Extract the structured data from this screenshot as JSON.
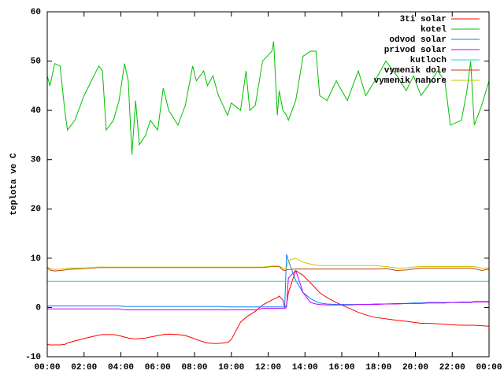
{
  "chart_data": {
    "type": "line",
    "ylabel": "teplota ve C",
    "legend": "top-right",
    "x": [
      0,
      0.15,
      0.4,
      0.7,
      0.95,
      1.1,
      1.5,
      2,
      2.8,
      3,
      3.2,
      3.6,
      3.9,
      4.2,
      4.4,
      4.6,
      4.8,
      5,
      5.35,
      5.6,
      6,
      6.3,
      6.6,
      7.1,
      7.5,
      7.9,
      8.1,
      8.5,
      8.7,
      9,
      9.3,
      9.8,
      10,
      10.5,
      10.8,
      11,
      11.3,
      11.7,
      12.2,
      12.3,
      12.5,
      12.6,
      12.8,
      12.9,
      13,
      13.1,
      13.5,
      13.9,
      14.3,
      14.6,
      14.8,
      15.2,
      15.7,
      16.3,
      16.5,
      16.9,
      17.3,
      17.8,
      18.4,
      19,
      19.5,
      19.9,
      20.3,
      20.7,
      21.2,
      21.6,
      21.9,
      22.5,
      22.8,
      23,
      23.2,
      23.6,
      24
    ],
    "xlim": [
      0,
      24
    ],
    "xticks": [
      {
        "value": 0,
        "label": "00:00"
      },
      {
        "value": 2,
        "label": "02:00"
      },
      {
        "value": 4,
        "label": "04:00"
      },
      {
        "value": 6,
        "label": "06:00"
      },
      {
        "value": 8,
        "label": "08:00"
      },
      {
        "value": 10,
        "label": "10:00"
      },
      {
        "value": 12,
        "label": "12:00"
      },
      {
        "value": 14,
        "label": "14:00"
      },
      {
        "value": 16,
        "label": "16:00"
      },
      {
        "value": 18,
        "label": "18:00"
      },
      {
        "value": 20,
        "label": "20:00"
      },
      {
        "value": 22,
        "label": "22:00"
      },
      {
        "value": 24,
        "label": "00:00"
      }
    ],
    "ylim": [
      -10,
      60
    ],
    "yticks": [
      -10,
      0,
      10,
      20,
      30,
      40,
      50,
      60
    ],
    "series": [
      {
        "name": "3ti solar",
        "color": "#ff0000",
        "values": [
          -7.5,
          -7.6,
          -7.6,
          -7.6,
          -7.5,
          -7.2,
          -6.8,
          -6.3,
          -5.6,
          -5.5,
          -5.5,
          -5.5,
          -5.7,
          -6,
          -6.2,
          -6.3,
          -6.4,
          -6.3,
          -6.2,
          -6,
          -5.7,
          -5.5,
          -5.4,
          -5.5,
          -5.7,
          -6.2,
          -6.5,
          -7,
          -7.2,
          -7.3,
          -7.3,
          -7.1,
          -6.5,
          -3,
          -2,
          -1.5,
          -0.8,
          0.5,
          1.5,
          1.7,
          2,
          2.3,
          1.5,
          0,
          0.5,
          3,
          7.5,
          6.5,
          5,
          3.8,
          3,
          2,
          1,
          0,
          -0.3,
          -1,
          -1.5,
          -2,
          -2.3,
          -2.6,
          -2.8,
          -3,
          -3.2,
          -3.2,
          -3.3,
          -3.4,
          -3.5,
          -3.6,
          -3.6,
          -3.6,
          -3.6,
          -3.7,
          -3.8
        ]
      },
      {
        "name": "kotel",
        "color": "#00c000",
        "values": [
          47,
          45,
          49.5,
          49,
          40,
          36,
          38,
          43,
          49,
          48,
          36,
          38,
          42,
          49.5,
          46,
          31,
          42,
          33,
          35,
          38,
          36,
          44.5,
          40,
          37,
          41,
          49,
          46,
          48,
          45,
          47,
          43,
          39,
          41.5,
          40,
          48,
          40,
          41,
          50,
          52,
          54,
          39,
          44,
          40,
          39.5,
          39,
          38,
          42,
          51,
          52,
          52,
          43,
          42,
          46,
          42,
          44,
          48,
          43,
          46,
          50,
          47,
          44,
          47,
          43,
          45,
          48,
          46,
          37,
          38,
          44,
          50,
          37,
          41,
          46
        ]
      },
      {
        "name": "odvod solar",
        "color": "#0080ff",
        "values": [
          0.3,
          0.3,
          0.3,
          0.3,
          0.3,
          0.3,
          0.3,
          0.3,
          0.3,
          0.3,
          0.3,
          0.3,
          0.3,
          0.2,
          0.2,
          0.2,
          0.2,
          0.2,
          0.2,
          0.2,
          0.2,
          0.2,
          0.2,
          0.2,
          0.2,
          0.2,
          0.2,
          0.2,
          0.2,
          0.2,
          0.2,
          0.1,
          0.1,
          0.1,
          0.1,
          0.1,
          0.1,
          0.1,
          0.1,
          0.1,
          0.1,
          0.1,
          0.1,
          0.1,
          10.8,
          9.5,
          5.5,
          3,
          1.8,
          1.2,
          0.9,
          0.7,
          0.6,
          0.6,
          0.6,
          0.6,
          0.6,
          0.7,
          0.7,
          0.8,
          0.8,
          0.9,
          0.9,
          1,
          1,
          1,
          1,
          1.1,
          1.1,
          1.1,
          1.2,
          1.2,
          1.2
        ]
      },
      {
        "name": "privod solar",
        "color": "#c000ff",
        "values": [
          -0.3,
          -0.3,
          -0.3,
          -0.3,
          -0.3,
          -0.3,
          -0.3,
          -0.3,
          -0.3,
          -0.3,
          -0.3,
          -0.3,
          -0.3,
          -0.5,
          -0.5,
          -0.5,
          -0.5,
          -0.5,
          -0.5,
          -0.5,
          -0.5,
          -0.5,
          -0.5,
          -0.5,
          -0.5,
          -0.5,
          -0.5,
          -0.5,
          -0.5,
          -0.5,
          -0.5,
          -0.5,
          -0.5,
          -0.5,
          -0.5,
          -0.5,
          -0.5,
          -0.2,
          -0.2,
          -0.2,
          -0.2,
          -0.2,
          -0.2,
          -0.2,
          0,
          6,
          7.5,
          3,
          1,
          0.7,
          0.6,
          0.5,
          0.5,
          0.5,
          0.5,
          0.6,
          0.6,
          0.6,
          0.7,
          0.7,
          0.8,
          0.8,
          0.8,
          0.9,
          0.9,
          0.9,
          1,
          1,
          1,
          1,
          1.1,
          1.1,
          1.1
        ]
      },
      {
        "name": "kutloch",
        "color": "#00e0e0",
        "values": [
          5.3,
          5.3,
          5.3,
          5.3,
          5.3,
          5.3,
          5.3,
          5.3,
          5.3,
          5.3,
          5.3,
          5.3,
          5.3,
          5.3,
          5.3,
          5.3,
          5.3,
          5.3,
          5.3,
          5.3,
          5.3,
          5.3,
          5.3,
          5.3,
          5.3,
          5.3,
          5.3,
          5.3,
          5.3,
          5.3,
          5.3,
          5.3,
          5.3,
          5.3,
          5.3,
          5.3,
          5.3,
          5.3,
          5.3,
          5.3,
          5.3,
          5.3,
          5.3,
          5.3,
          5.3,
          5.3,
          5.3,
          5.3,
          5.3,
          5.3,
          5.3,
          5.3,
          5.3,
          5.3,
          5.3,
          5.3,
          5.3,
          5.3,
          5.3,
          5.3,
          5.3,
          5.3,
          5.3,
          5.3,
          5.3,
          5.3,
          5.3,
          5.3,
          5.3,
          5.3,
          5.3,
          5.3,
          5.3
        ]
      },
      {
        "name": "vymenik dole",
        "color": "#c04000",
        "values": [
          8,
          7.6,
          7.4,
          7.5,
          7.6,
          7.7,
          7.8,
          7.9,
          8.1,
          8.1,
          8.1,
          8.1,
          8.1,
          8.1,
          8.1,
          8.1,
          8.1,
          8.1,
          8.1,
          8.1,
          8.1,
          8.1,
          8.1,
          8.1,
          8.1,
          8.1,
          8.1,
          8.1,
          8.1,
          8.1,
          8.1,
          8.1,
          8.1,
          8.1,
          8.1,
          8.1,
          8.1,
          8.1,
          8.3,
          8.3,
          8.3,
          8.3,
          7.6,
          7.5,
          7.6,
          7.7,
          7.8,
          7.8,
          7.8,
          7.8,
          7.8,
          7.8,
          7.8,
          7.8,
          7.8,
          7.8,
          7.8,
          7.8,
          7.9,
          7.5,
          7.6,
          7.8,
          8,
          8,
          8,
          8,
          8,
          8,
          8,
          8,
          7.9,
          7.5,
          7.8
        ]
      },
      {
        "name": "vymenik nahore",
        "color": "#c8c800",
        "values": [
          8.2,
          7.9,
          7.7,
          7.8,
          7.9,
          8,
          8,
          8,
          8.2,
          8.2,
          8.2,
          8.2,
          8.2,
          8.2,
          8.2,
          8.2,
          8.2,
          8.2,
          8.2,
          8.2,
          8.2,
          8.2,
          8.2,
          8.2,
          8.2,
          8.2,
          8.2,
          8.2,
          8.2,
          8.2,
          8.2,
          8.2,
          8.2,
          8.2,
          8.2,
          8.2,
          8.2,
          8.2,
          8.4,
          8.4,
          8.4,
          8.4,
          8,
          7.8,
          8,
          9.5,
          10,
          9.2,
          8.8,
          8.6,
          8.5,
          8.5,
          8.5,
          8.5,
          8.5,
          8.5,
          8.5,
          8.5,
          8.3,
          8,
          8,
          8.2,
          8.3,
          8.3,
          8.3,
          8.3,
          8.3,
          8.3,
          8.3,
          8.3,
          8.3,
          8,
          8
        ]
      }
    ]
  }
}
